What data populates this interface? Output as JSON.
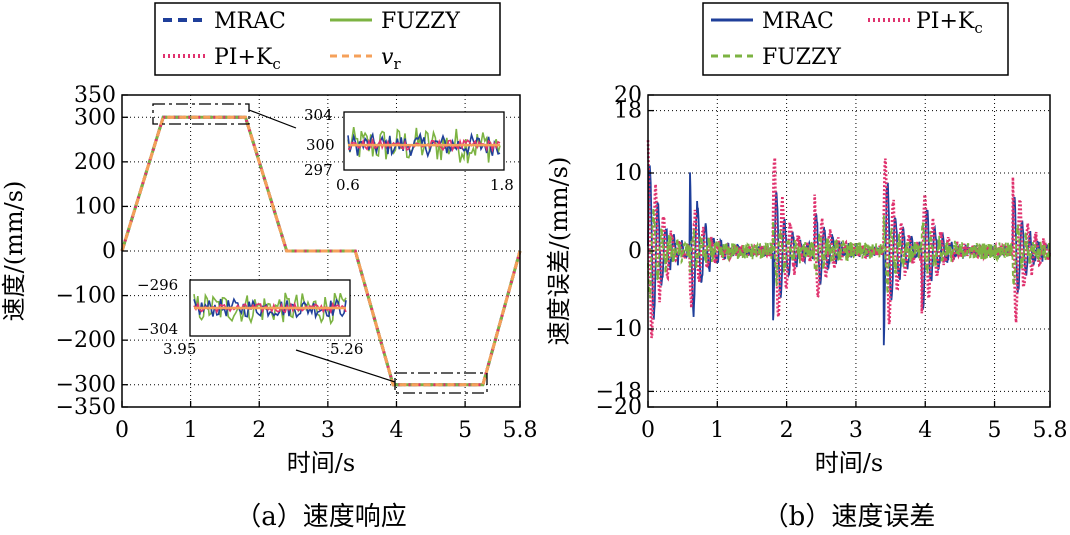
{
  "chart_data": [
    {
      "panel": "a",
      "type": "line",
      "caption": "（a）速度响应",
      "xlabel": "时间/s",
      "ylabel": "速度/(mm/s)",
      "xlim": [
        0,
        5.8
      ],
      "ylim": [
        -350,
        350
      ],
      "xticks": [
        "0",
        "1",
        "2",
        "3",
        "4",
        "5",
        "5.8"
      ],
      "xtick_values": [
        0,
        1,
        2,
        3,
        4,
        5,
        5.8
      ],
      "yticks": [
        "350",
        "300",
        "200",
        "100",
        "0",
        "−100",
        "−200",
        "−300",
        "−350"
      ],
      "ytick_values": [
        350,
        300,
        200,
        100,
        0,
        -100,
        -200,
        -300,
        -350
      ],
      "grid": true,
      "legend": {
        "placement": "top",
        "entries": [
          {
            "label": "MRAC",
            "color": "#1f3f9a",
            "style": "dashed"
          },
          {
            "label": "FUZZY",
            "color": "#7cb342",
            "style": "solid"
          },
          {
            "label": "PI+K",
            "sub": "c",
            "color": "#e0326e",
            "style": "dotted"
          },
          {
            "label": "v",
            "sub": "r",
            "color": "#f5a05a",
            "style": "dashed"
          }
        ]
      },
      "x": [
        0,
        0.6,
        1.8,
        2.4,
        3.4,
        3.95,
        5.26,
        5.8
      ],
      "series": [
        {
          "name": "MRAC",
          "values": [
            0,
            300,
            300,
            0,
            0,
            -300,
            -300,
            0
          ]
        },
        {
          "name": "FUZZY",
          "values": [
            0,
            300,
            300,
            0,
            0,
            -300,
            -300,
            0
          ]
        },
        {
          "name": "PI+Kc",
          "values": [
            0,
            300,
            300,
            0,
            0,
            -300,
            -300,
            0
          ]
        },
        {
          "name": "vr",
          "values": [
            0,
            300,
            300,
            0,
            0,
            -300,
            -300,
            0
          ]
        }
      ],
      "insets": [
        {
          "xlim": [
            0.6,
            1.8
          ],
          "ylim": [
            297,
            304
          ],
          "xticks": [
            "0.6",
            "1.8"
          ],
          "yticks": [
            "304",
            "300",
            "297"
          ],
          "ytick_values": [
            304,
            300,
            297
          ],
          "center": 300
        },
        {
          "xlim": [
            3.95,
            5.26
          ],
          "ylim": [
            -304,
            -296
          ],
          "xticks": [
            "3.95",
            "5.26"
          ],
          "yticks": [
            "−296",
            "−304"
          ],
          "ytick_values": [
            -296,
            -304
          ],
          "center": -300
        }
      ]
    },
    {
      "panel": "b",
      "type": "line",
      "caption": "（b）速度误差",
      "xlabel": "时间/s",
      "ylabel": "速度误差/(mm/s)",
      "xlim": [
        0,
        5.8
      ],
      "ylim": [
        -20,
        20
      ],
      "xticks": [
        "0",
        "1",
        "2",
        "3",
        "4",
        "5",
        "5.8"
      ],
      "xtick_values": [
        0,
        1,
        2,
        3,
        4,
        5,
        5.8
      ],
      "yticks": [
        "20",
        "18",
        "10",
        "0",
        "−10",
        "−18",
        "−20"
      ],
      "ytick_values": [
        20,
        18,
        10,
        0,
        -10,
        -18,
        -20
      ],
      "grid": true,
      "legend": {
        "placement": "top",
        "entries": [
          {
            "label": "MRAC",
            "color": "#1f3f9a",
            "style": "solid"
          },
          {
            "label": "PI+K",
            "sub": "c",
            "color": "#e0326e",
            "style": "dotted"
          },
          {
            "label": "FUZZY",
            "color": "#7cb342",
            "style": "dashed"
          }
        ]
      },
      "oscillation_bursts_s": [
        0.0,
        0.6,
        1.8,
        2.4,
        3.4,
        3.95,
        5.26
      ],
      "series": [
        {
          "name": "MRAC",
          "peak_amplitude": 13,
          "x": [
            0.0,
            0.6,
            1.8,
            2.4,
            3.4,
            3.95,
            5.26,
            5.8
          ],
          "peaks": [
            -13,
            11,
            10,
            6,
            12,
            8,
            8,
            10
          ]
        },
        {
          "name": "PI+Kc",
          "peak_amplitude": 15,
          "x": [
            0.0,
            0.6,
            1.8,
            2.4,
            3.4,
            3.95,
            5.26,
            5.8
          ],
          "peaks": [
            15,
            -8,
            14,
            8,
            -14,
            10,
            12,
            -8
          ]
        },
        {
          "name": "FUZZY",
          "peak_amplitude": 7,
          "x": [
            0.0,
            0.6,
            1.8,
            2.4,
            3.4,
            3.95,
            5.26,
            5.8
          ],
          "peaks": [
            7,
            3,
            5,
            3,
            -6,
            4,
            4,
            3
          ]
        }
      ]
    }
  ]
}
